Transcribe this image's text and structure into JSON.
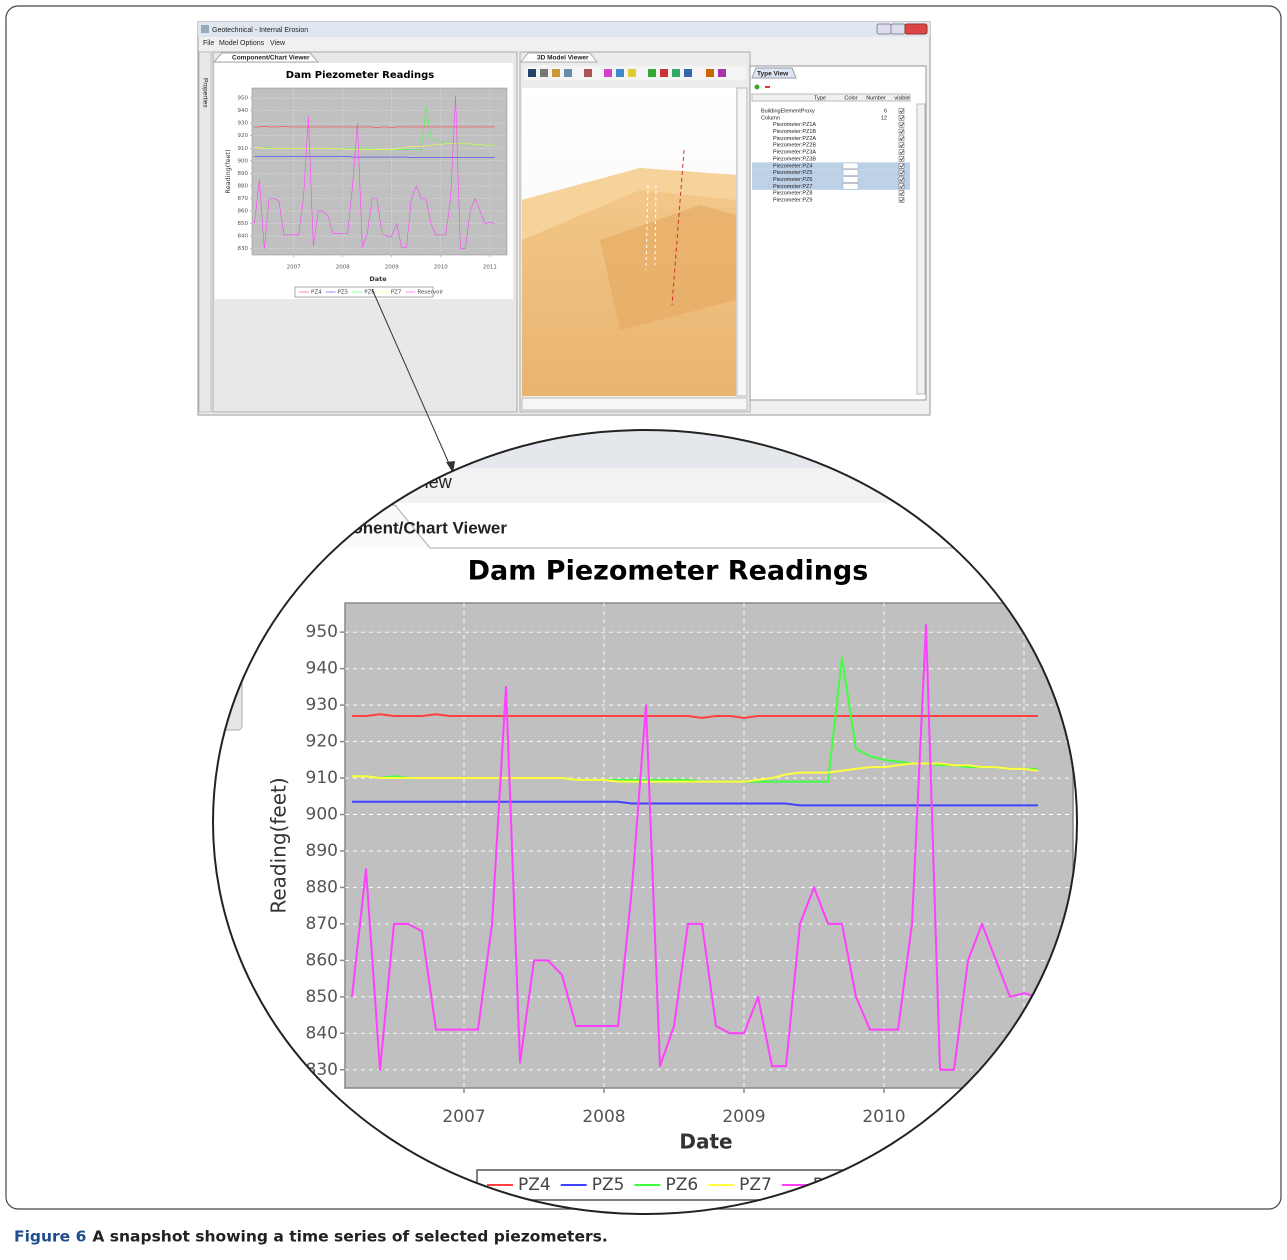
{
  "window": {
    "title": "Geotechnical - Internal Erosion",
    "menu": [
      "File",
      "Model Options",
      "View"
    ]
  },
  "sidebar": {
    "label": "Properties"
  },
  "panels": {
    "chart_viewer": "Component/Chart Viewer",
    "model_viewer": "3D Model Viewer",
    "type_view": "Type View"
  },
  "type_view": {
    "columns": [
      "Type",
      "Color",
      "Number",
      "visible"
    ],
    "rows": [
      {
        "type": "BuildingElementProxy",
        "number": 6
      },
      {
        "type": "Column",
        "number": 12
      },
      {
        "type": "Piezometer:PZ1A"
      },
      {
        "type": "Piezometer:PZ1B"
      },
      {
        "type": "Piezometer:PZ2A"
      },
      {
        "type": "Piezometer:PZ2B"
      },
      {
        "type": "Piezometer:PZ3A"
      },
      {
        "type": "Piezometer:PZ3B"
      },
      {
        "type": "Piezometer:PZ4",
        "selected": true
      },
      {
        "type": "Piezometer:PZ5",
        "selected": true
      },
      {
        "type": "Piezometer:PZ6",
        "selected": true
      },
      {
        "type": "Piezometer:PZ7",
        "selected": true
      },
      {
        "type": "Piezometer:PZ8"
      },
      {
        "type": "Piezometer:PZ9"
      }
    ]
  },
  "chart_data": {
    "type": "line",
    "title": "Dam Piezometer Readings",
    "x_label": "Date",
    "y_label": "Reading(feet)",
    "x": [
      2006.2,
      2006.3,
      2006.4,
      2006.5,
      2006.6,
      2006.7,
      2006.8,
      2006.9,
      2007.0,
      2007.1,
      2007.2,
      2007.3,
      2007.4,
      2007.5,
      2007.6,
      2007.7,
      2007.8,
      2007.9,
      2008.0,
      2008.1,
      2008.2,
      2008.3,
      2008.4,
      2008.5,
      2008.6,
      2008.7,
      2008.8,
      2008.9,
      2009.0,
      2009.1,
      2009.2,
      2009.3,
      2009.4,
      2009.5,
      2009.6,
      2009.7,
      2009.8,
      2009.9,
      2010.0,
      2010.1,
      2010.2,
      2010.3,
      2010.4,
      2010.5,
      2010.6,
      2010.7,
      2010.8,
      2010.9,
      2011.0,
      2011.1
    ],
    "series": [
      {
        "name": "PZ4",
        "color": "#ff4040",
        "values": [
          927,
          927,
          927.5,
          927,
          927,
          927,
          927.5,
          927,
          927,
          927,
          927,
          927,
          927,
          927,
          927,
          927,
          927,
          927,
          927,
          927,
          927,
          927,
          927,
          927,
          927,
          926.5,
          927,
          927,
          926.5,
          927,
          927,
          927,
          927,
          927,
          927,
          927,
          927,
          927,
          927,
          927,
          927,
          927,
          927,
          927,
          927,
          927,
          927,
          927,
          927,
          927
        ]
      },
      {
        "name": "PZ5",
        "color": "#4040ff",
        "values": [
          903.5,
          903.5,
          903.5,
          903.5,
          903.5,
          903.5,
          903.5,
          903.5,
          903.5,
          903.5,
          903.5,
          903.5,
          903.5,
          903.5,
          903.5,
          903.5,
          903.5,
          903.5,
          903.5,
          903.5,
          903,
          903,
          903,
          903,
          903,
          903,
          903,
          903,
          903,
          903,
          903,
          903,
          902.5,
          902.5,
          902.5,
          902.5,
          902.5,
          902.5,
          902.5,
          902.5,
          902.5,
          902.5,
          902.5,
          902.5,
          902.5,
          902.5,
          902.5,
          902.5,
          902.5,
          902.5
        ]
      },
      {
        "name": "PZ6",
        "color": "#40ff40",
        "values": [
          910.5,
          910.5,
          910,
          910.5,
          910,
          910,
          910,
          910,
          910,
          910,
          910,
          910,
          910,
          910,
          910,
          910,
          909.5,
          909.5,
          909.5,
          909.5,
          909.5,
          909.5,
          909.5,
          909.5,
          909.5,
          909,
          909,
          909,
          909,
          909,
          909,
          909,
          909,
          909,
          909,
          943,
          918,
          916,
          915,
          914.5,
          914,
          914,
          913.5,
          913.5,
          913,
          913,
          913,
          912.5,
          912.5,
          912.5
        ]
      },
      {
        "name": "PZ7",
        "color": "#ffff40",
        "values": [
          910.5,
          910.5,
          910,
          910,
          910,
          910,
          910,
          910,
          910,
          910,
          910,
          910,
          910,
          910,
          910,
          910,
          909.5,
          909.5,
          909.5,
          909,
          909,
          909,
          909,
          909,
          909,
          909,
          909,
          909,
          909,
          909.5,
          910,
          911,
          911.5,
          911.5,
          911.5,
          912,
          912.5,
          913,
          913,
          913.5,
          914,
          914,
          914,
          913.5,
          913.5,
          913,
          913,
          912.5,
          912.5,
          912
        ]
      },
      {
        "name": "Reservoir",
        "color": "#ff40ff",
        "values": [
          850,
          885,
          830,
          870,
          870,
          868,
          841,
          841,
          841,
          841,
          870,
          935,
          832,
          860,
          860,
          856,
          842,
          842,
          842,
          842,
          880,
          930,
          831,
          842,
          870,
          870,
          842,
          840,
          840,
          850,
          831,
          831,
          870,
          880,
          870,
          870,
          850,
          841,
          841,
          841,
          870,
          952,
          830,
          830,
          860,
          870,
          860,
          850,
          851,
          850
        ]
      }
    ],
    "xlim": [
      2006.15,
      2011.35
    ],
    "xticks": [
      2007,
      2008,
      2009,
      2010,
      2011
    ],
    "ylim": [
      825,
      958
    ],
    "yticks": [
      830,
      840,
      850,
      860,
      870,
      880,
      890,
      900,
      910,
      920,
      930,
      940,
      950
    ],
    "grid": true
  },
  "caption": {
    "label": "Figure 6",
    "text": "A snapshot showing a time series of selected piezometers."
  }
}
